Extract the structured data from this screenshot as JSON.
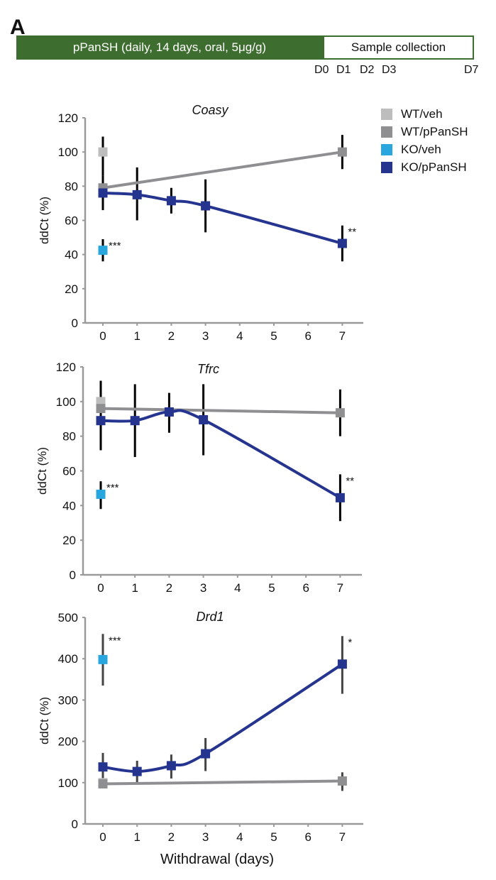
{
  "panel_label": "A",
  "timeline": {
    "treatment_label": "pPanSH (daily, 14 days, oral, 5μg/g)",
    "collection_label": "Sample collection",
    "day_labels": [
      "D0",
      "D1",
      "D2",
      "D3",
      "D7"
    ],
    "treatment_color": "#3e6e2f"
  },
  "legend": [
    {
      "label": "WT/veh",
      "color": "#bdbdbd"
    },
    {
      "label": "WT/pPanSH",
      "color": "#8f8f91"
    },
    {
      "label": "KO/veh",
      "color": "#2aa6df"
    },
    {
      "label": "KO/pPanSH",
      "color": "#25358f"
    }
  ],
  "chart_data": [
    {
      "type": "line",
      "title": "Coasy",
      "xlabel": "",
      "ylabel": "ddCt (%)",
      "x_ticks": [
        0,
        1,
        2,
        3,
        4,
        5,
        6,
        7
      ],
      "y_ticks": [
        0,
        20,
        40,
        60,
        80,
        100,
        120
      ],
      "ylim": [
        0,
        120
      ],
      "xlim": [
        -0.5,
        7.8
      ],
      "grid": false,
      "series": [
        {
          "name": "WT/veh",
          "color": "#bdbdbd",
          "connected": false,
          "points": [
            {
              "x": 0,
              "y": 100,
              "err_low": 86,
              "err_high": 109
            }
          ]
        },
        {
          "name": "WT/pPanSH",
          "color": "#8f8f91",
          "connected": true,
          "smooth": false,
          "points": [
            {
              "x": 0,
              "y": 79,
              "err_low": 66,
              "err_high": 86
            },
            {
              "x": 7,
              "y": 100,
              "err_low": 90,
              "err_high": 110
            }
          ]
        },
        {
          "name": "KO/veh",
          "color": "#2aa6df",
          "connected": false,
          "points": [
            {
              "x": 0,
              "y": 42.5,
              "err_low": 36,
              "err_high": 49,
              "annotation": "***"
            }
          ]
        },
        {
          "name": "KO/pPanSH",
          "color": "#25358f",
          "connected": true,
          "smooth": true,
          "points": [
            {
              "x": 0,
              "y": 76,
              "err_low": 66,
              "err_high": 86
            },
            {
              "x": 1,
              "y": 75,
              "err_low": 60,
              "err_high": 91
            },
            {
              "x": 2,
              "y": 71.5,
              "err_low": 64,
              "err_high": 79
            },
            {
              "x": 3,
              "y": 68.5,
              "err_low": 53,
              "err_high": 84
            },
            {
              "x": 7,
              "y": 46.5,
              "err_low": 36,
              "err_high": 57,
              "annotation": "**"
            }
          ]
        }
      ]
    },
    {
      "type": "line",
      "title": "Tfrc",
      "xlabel": "",
      "ylabel": "ddCt (%)",
      "x_ticks": [
        0,
        1,
        2,
        3,
        4,
        5,
        6,
        7
      ],
      "y_ticks": [
        0,
        20,
        40,
        60,
        80,
        100,
        120
      ],
      "ylim": [
        0,
        120
      ],
      "xlim": [
        -0.5,
        7.8
      ],
      "grid": false,
      "series": [
        {
          "name": "WT/veh",
          "color": "#bdbdbd",
          "connected": false,
          "points": [
            {
              "x": 0,
              "y": 100,
              "err_low": 72,
              "err_high": 112
            }
          ]
        },
        {
          "name": "WT/pPanSH",
          "color": "#8f8f91",
          "connected": true,
          "smooth": false,
          "points": [
            {
              "x": 0,
              "y": 96,
              "err_low": 72,
              "err_high": 112
            },
            {
              "x": 7,
              "y": 93.5,
              "err_low": 80,
              "err_high": 107
            }
          ]
        },
        {
          "name": "KO/veh",
          "color": "#2aa6df",
          "connected": false,
          "points": [
            {
              "x": 0,
              "y": 46.5,
              "err_low": 38,
              "err_high": 54,
              "annotation": "***"
            }
          ]
        },
        {
          "name": "KO/pPanSH",
          "color": "#25358f",
          "connected": true,
          "smooth": true,
          "points": [
            {
              "x": 0,
              "y": 89,
              "err_low": 72,
              "err_high": 112
            },
            {
              "x": 1,
              "y": 89,
              "err_low": 68,
              "err_high": 110
            },
            {
              "x": 2,
              "y": 94,
              "err_low": 82,
              "err_high": 105
            },
            {
              "x": 3,
              "y": 89.5,
              "err_low": 69,
              "err_high": 110
            },
            {
              "x": 7,
              "y": 44.5,
              "err_low": 31,
              "err_high": 58,
              "annotation": "**"
            }
          ]
        }
      ]
    },
    {
      "type": "line",
      "title": "Drd1",
      "xlabel": "Withdrawal (days)",
      "ylabel": "ddCt (%)",
      "x_ticks": [
        0,
        1,
        2,
        3,
        4,
        5,
        6,
        7
      ],
      "y_ticks": [
        0,
        100,
        200,
        300,
        400,
        500
      ],
      "ylim": [
        0,
        500
      ],
      "xlim": [
        -0.5,
        7.8
      ],
      "grid": false,
      "series": [
        {
          "name": "WT/veh",
          "color": "#bdbdbd",
          "connected": false,
          "points": [
            {
              "x": 0,
              "y": 100,
              "err_low": 95,
              "err_high": 105
            }
          ]
        },
        {
          "name": "WT/pPanSH",
          "color": "#8f8f91",
          "connected": true,
          "smooth": false,
          "points": [
            {
              "x": 0,
              "y": 97,
              "err_low": 92,
              "err_high": 102
            },
            {
              "x": 7,
              "y": 104,
              "err_low": 80,
              "err_high": 125
            }
          ]
        },
        {
          "name": "KO/veh",
          "color": "#2aa6df",
          "connected": false,
          "points": [
            {
              "x": 0,
              "y": 398,
              "err_low": 335,
              "err_high": 460,
              "annotation": "***"
            }
          ]
        },
        {
          "name": "KO/pPanSH",
          "color": "#25358f",
          "connected": true,
          "smooth": true,
          "points": [
            {
              "x": 0,
              "y": 138,
              "err_low": 105,
              "err_high": 172
            },
            {
              "x": 1,
              "y": 127,
              "err_low": 100,
              "err_high": 153
            },
            {
              "x": 2,
              "y": 141,
              "err_low": 110,
              "err_high": 168
            },
            {
              "x": 3,
              "y": 170,
              "err_low": 128,
              "err_high": 208
            },
            {
              "x": 7,
              "y": 387,
              "err_low": 315,
              "err_high": 455,
              "annotation": "*"
            }
          ]
        }
      ]
    }
  ]
}
